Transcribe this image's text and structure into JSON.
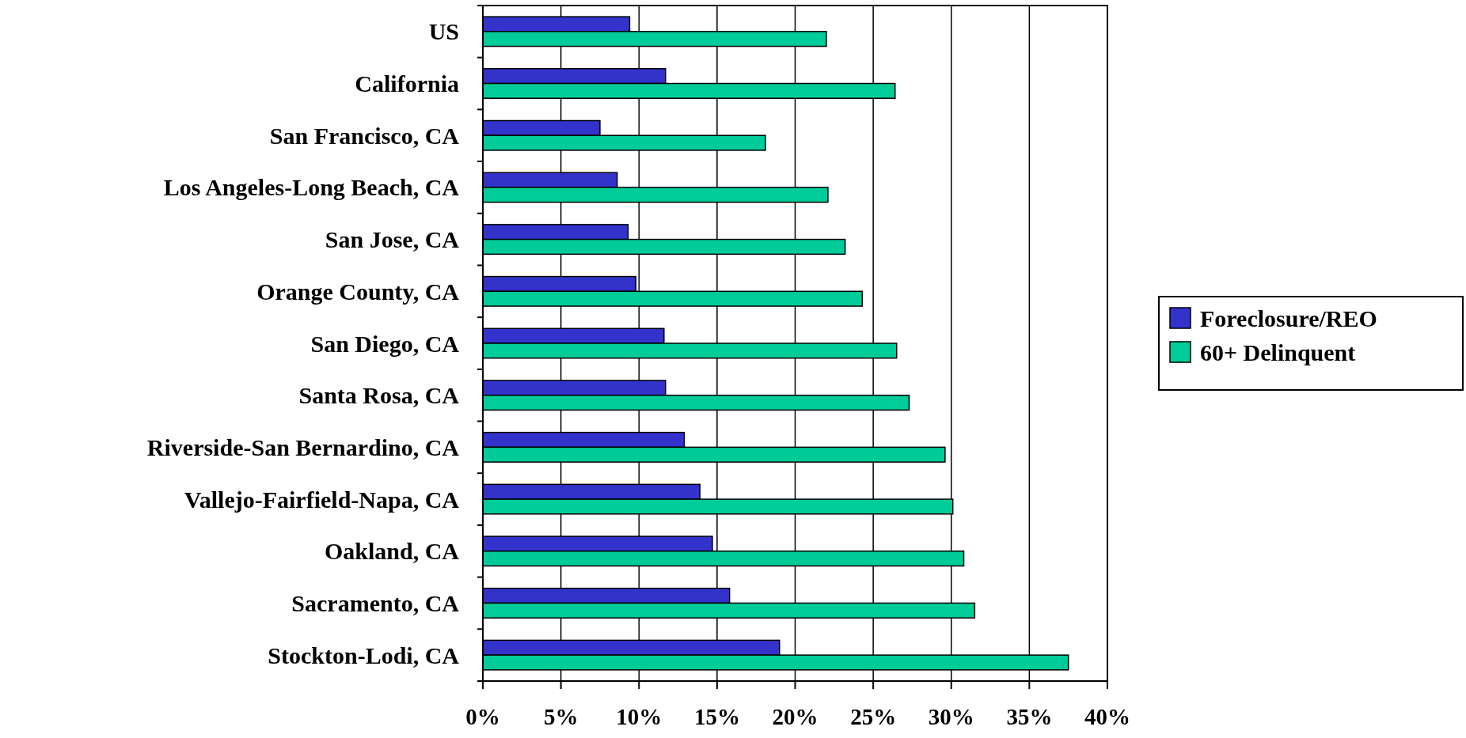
{
  "chart_data": {
    "type": "bar",
    "orientation": "horizontal",
    "categories": [
      "US",
      "California",
      "San Francisco, CA",
      "Los Angeles-Long Beach, CA",
      "San Jose, CA",
      "Orange County, CA",
      "San Diego, CA",
      "Santa Rosa, CA",
      "Riverside-San Bernardino, CA",
      "Vallejo-Fairfield-Napa, CA",
      "Oakland, CA",
      "Sacramento, CA",
      "Stockton-Lodi, CA"
    ],
    "series": [
      {
        "name": "Foreclosure/REO",
        "color": "#3333cc",
        "values": [
          9.4,
          11.7,
          7.5,
          8.6,
          9.3,
          9.8,
          11.6,
          11.7,
          12.9,
          13.9,
          14.7,
          15.8,
          19.0
        ]
      },
      {
        "name": "60+ Delinquent",
        "color": "#00cc99",
        "values": [
          22.0,
          26.4,
          18.1,
          22.1,
          23.2,
          24.3,
          26.5,
          27.3,
          29.6,
          30.1,
          30.8,
          31.5,
          37.5
        ]
      }
    ],
    "xlim": [
      0,
      40
    ],
    "xticks": [
      {
        "value": 0,
        "label": "0%"
      },
      {
        "value": 5,
        "label": "5%"
      },
      {
        "value": 10,
        "label": "10%"
      },
      {
        "value": 15,
        "label": "15%"
      },
      {
        "value": 20,
        "label": "20%"
      },
      {
        "value": 25,
        "label": "25%"
      },
      {
        "value": 30,
        "label": "30%"
      },
      {
        "value": 35,
        "label": "35%"
      },
      {
        "value": 40,
        "label": "40%"
      }
    ],
    "grid": "x",
    "legend": "right"
  }
}
